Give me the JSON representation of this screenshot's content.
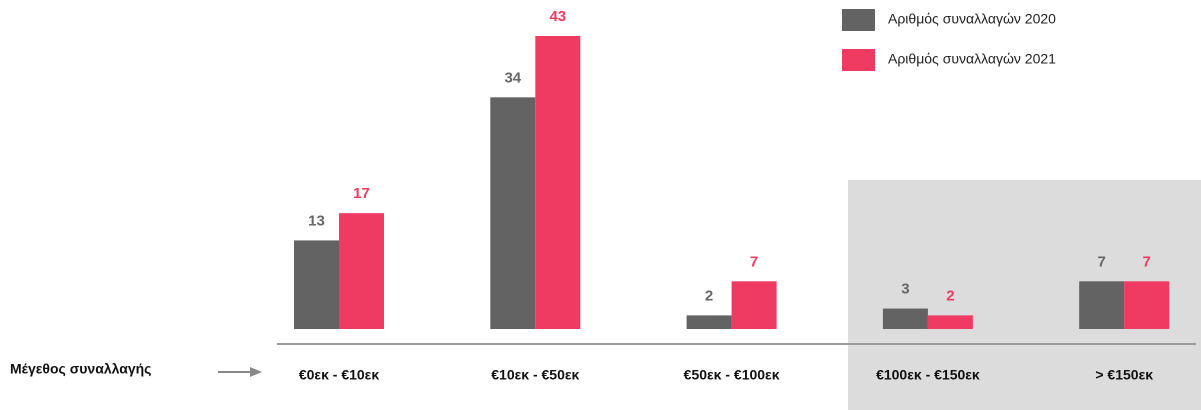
{
  "chart_data": {
    "type": "bar",
    "axis_label": "Μέγεθος συναλλαγής",
    "categories": [
      "€0εκ - €10εκ",
      "€10εκ - €50εκ",
      "€50εκ - €100εκ",
      "€100εκ - €150εκ",
      "> €150εκ"
    ],
    "series": [
      {
        "name": "Αριθμός συναλλαγών 2020",
        "color": "#636363",
        "values": [
          13,
          34,
          2,
          3,
          7
        ]
      },
      {
        "name": "Αριθμός συναλλαγών 2021",
        "color": "#ef3b62",
        "values": [
          17,
          43,
          7,
          2,
          7
        ]
      }
    ]
  }
}
